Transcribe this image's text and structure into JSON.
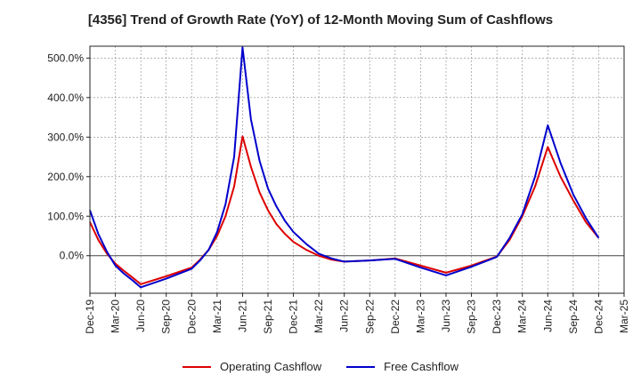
{
  "chart_data": {
    "type": "line",
    "title": "[4356]  Trend of Growth Rate (YoY) of 12-Month Moving Sum of Cashflows",
    "xlabel": "",
    "ylabel": "",
    "ylim": [
      -95,
      530
    ],
    "yticks": [
      0,
      100,
      200,
      300,
      400,
      500
    ],
    "ytick_labels": [
      "0.0%",
      "100.0%",
      "200.0%",
      "300.0%",
      "400.0%",
      "500.0%"
    ],
    "categories": [
      "Dec-19",
      "Mar-20",
      "Jun-20",
      "Sep-20",
      "Dec-20",
      "Mar-21",
      "Jun-21",
      "Sep-21",
      "Dec-21",
      "Mar-22",
      "Jun-22",
      "Sep-22",
      "Dec-22",
      "Mar-23",
      "Jun-23",
      "Sep-23",
      "Dec-23",
      "Mar-24",
      "Jun-24",
      "Sep-24",
      "Dec-24",
      "Mar-25"
    ],
    "grid": true,
    "legend_position": "bottom",
    "series": [
      {
        "name": "Operating Cashflow",
        "color": "#dd0000",
        "points": [
          [
            0,
            85
          ],
          [
            0.33,
            40
          ],
          [
            0.67,
            5
          ],
          [
            1,
            -20
          ],
          [
            1.33,
            -38
          ],
          [
            1.67,
            -55
          ],
          [
            2,
            -72
          ],
          [
            3,
            -52
          ],
          [
            4,
            -30
          ],
          [
            4.33,
            -10
          ],
          [
            4.67,
            15
          ],
          [
            5,
            50
          ],
          [
            5.33,
            100
          ],
          [
            5.67,
            175
          ],
          [
            6,
            302
          ],
          [
            6.33,
            225
          ],
          [
            6.67,
            160
          ],
          [
            7,
            115
          ],
          [
            7.33,
            80
          ],
          [
            7.67,
            55
          ],
          [
            8,
            35
          ],
          [
            8.5,
            15
          ],
          [
            9,
            0
          ],
          [
            9.5,
            -10
          ],
          [
            10,
            -15
          ],
          [
            11,
            -12
          ],
          [
            12,
            -7
          ],
          [
            13,
            -25
          ],
          [
            14,
            -43
          ],
          [
            15,
            -25
          ],
          [
            16,
            -2
          ],
          [
            16.5,
            40
          ],
          [
            17,
            100
          ],
          [
            17.5,
            175
          ],
          [
            18,
            275
          ],
          [
            18.5,
            200
          ],
          [
            19,
            140
          ],
          [
            19.5,
            85
          ],
          [
            20,
            45
          ]
        ]
      },
      {
        "name": "Free Cashflow",
        "color": "#0000cc",
        "points": [
          [
            0,
            115
          ],
          [
            0.33,
            55
          ],
          [
            0.67,
            10
          ],
          [
            1,
            -25
          ],
          [
            1.33,
            -45
          ],
          [
            1.67,
            -62
          ],
          [
            2,
            -80
          ],
          [
            3,
            -58
          ],
          [
            4,
            -33
          ],
          [
            4.33,
            -12
          ],
          [
            4.67,
            15
          ],
          [
            5,
            60
          ],
          [
            5.33,
            130
          ],
          [
            5.67,
            250
          ],
          [
            6,
            527
          ],
          [
            6.33,
            345
          ],
          [
            6.67,
            240
          ],
          [
            7,
            170
          ],
          [
            7.33,
            125
          ],
          [
            7.67,
            88
          ],
          [
            8,
            60
          ],
          [
            8.5,
            30
          ],
          [
            9,
            5
          ],
          [
            9.5,
            -7
          ],
          [
            10,
            -15
          ],
          [
            11,
            -12
          ],
          [
            12,
            -8
          ],
          [
            13,
            -30
          ],
          [
            14,
            -50
          ],
          [
            15,
            -28
          ],
          [
            16,
            -3
          ],
          [
            16.5,
            45
          ],
          [
            17,
            105
          ],
          [
            17.5,
            200
          ],
          [
            18,
            330
          ],
          [
            18.5,
            235
          ],
          [
            19,
            155
          ],
          [
            19.5,
            95
          ],
          [
            20,
            45
          ]
        ]
      }
    ]
  }
}
